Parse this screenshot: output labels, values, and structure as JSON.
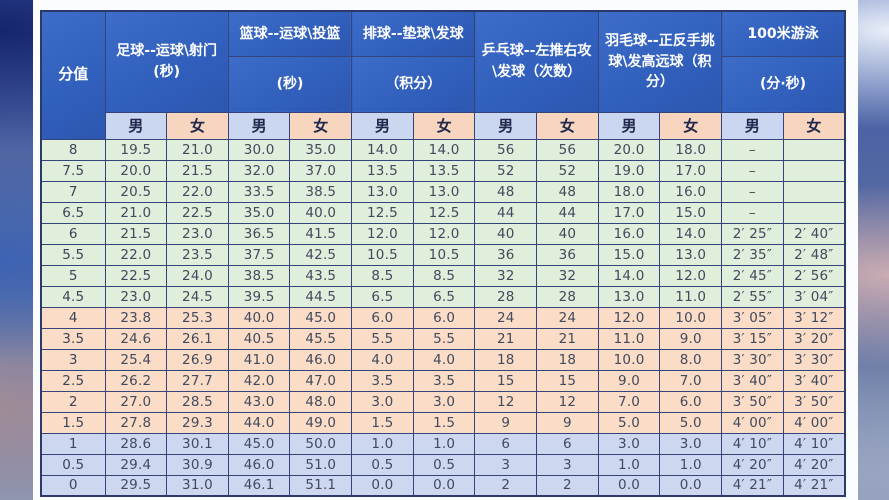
{
  "colors": {
    "header_blue": "#3160bd",
    "male_header_bg": "#cbd6f0",
    "female_header_bg": "#f8d5bf",
    "band_green": "#e0efdb",
    "band_peach": "#fbdcc6",
    "band_blue": "#cdd8f0",
    "grid_border": "#35457c",
    "card_bg": "#fbfcfe"
  },
  "table": {
    "score_header": "分值",
    "male_label": "男",
    "female_label": "女",
    "sports": [
      {
        "id": "football",
        "name": "足球--运球\\射门",
        "unit": "(秒)",
        "split": false
      },
      {
        "id": "basketball",
        "name": "篮球--运球\\投篮",
        "unit": "(秒)",
        "split": true
      },
      {
        "id": "volleyball",
        "name": "排球--垫球\\发球",
        "unit": "（积分）",
        "split": true
      },
      {
        "id": "tabletennis",
        "name": "乒乓球--左推右攻\\发球（次数）",
        "unit": "",
        "split": false
      },
      {
        "id": "badminton",
        "name": "羽毛球--正反手挑球\\发高远球（积分）",
        "unit": "",
        "split": false
      },
      {
        "id": "swimming",
        "name": "100米游泳",
        "unit": "(分·秒)",
        "split": true
      }
    ],
    "rows": [
      {
        "score": "8",
        "band": "green",
        "values": [
          "19.5",
          "21.0",
          "30.0",
          "35.0",
          "14.0",
          "14.0",
          "56",
          "56",
          "20.0",
          "18.0",
          "–",
          ""
        ]
      },
      {
        "score": "7.5",
        "band": "green",
        "values": [
          "20.0",
          "21.5",
          "32.0",
          "37.0",
          "13.5",
          "13.5",
          "52",
          "52",
          "19.0",
          "17.0",
          "–",
          ""
        ]
      },
      {
        "score": "7",
        "band": "green",
        "values": [
          "20.5",
          "22.0",
          "33.5",
          "38.5",
          "13.0",
          "13.0",
          "48",
          "48",
          "18.0",
          "16.0",
          "–",
          ""
        ]
      },
      {
        "score": "6.5",
        "band": "green",
        "values": [
          "21.0",
          "22.5",
          "35.0",
          "40.0",
          "12.5",
          "12.5",
          "44",
          "44",
          "17.0",
          "15.0",
          "–",
          ""
        ]
      },
      {
        "score": "6",
        "band": "green",
        "values": [
          "21.5",
          "23.0",
          "36.5",
          "41.5",
          "12.0",
          "12.0",
          "40",
          "40",
          "16.0",
          "14.0",
          "2′ 25″",
          "2′ 40″"
        ]
      },
      {
        "score": "5.5",
        "band": "green",
        "values": [
          "22.0",
          "23.5",
          "37.5",
          "42.5",
          "10.5",
          "10.5",
          "36",
          "36",
          "15.0",
          "13.0",
          "2′ 35″",
          "2′ 48″"
        ]
      },
      {
        "score": "5",
        "band": "green",
        "values": [
          "22.5",
          "24.0",
          "38.5",
          "43.5",
          "8.5",
          "8.5",
          "32",
          "32",
          "14.0",
          "12.0",
          "2′ 45″",
          "2′ 56″"
        ]
      },
      {
        "score": "4.5",
        "band": "green",
        "values": [
          "23.0",
          "24.5",
          "39.5",
          "44.5",
          "6.5",
          "6.5",
          "28",
          "28",
          "13.0",
          "11.0",
          "2′ 55″",
          "3′ 04″"
        ]
      },
      {
        "score": "4",
        "band": "peach",
        "values": [
          "23.8",
          "25.3",
          "40.0",
          "45.0",
          "6.0",
          "6.0",
          "24",
          "24",
          "12.0",
          "10.0",
          "3′ 05″",
          "3′ 12″"
        ]
      },
      {
        "score": "3.5",
        "band": "peach",
        "values": [
          "24.6",
          "26.1",
          "40.5",
          "45.5",
          "5.5",
          "5.5",
          "21",
          "21",
          "11.0",
          "9.0",
          "3′ 15″",
          "3′ 20″"
        ]
      },
      {
        "score": "3",
        "band": "peach",
        "values": [
          "25.4",
          "26.9",
          "41.0",
          "46.0",
          "4.0",
          "4.0",
          "18",
          "18",
          "10.0",
          "8.0",
          "3′ 30″",
          "3′ 30″"
        ]
      },
      {
        "score": "2.5",
        "band": "peach",
        "values": [
          "26.2",
          "27.7",
          "42.0",
          "47.0",
          "3.5",
          "3.5",
          "15",
          "15",
          "9.0",
          "7.0",
          "3′ 40″",
          "3′ 40″"
        ]
      },
      {
        "score": "2",
        "band": "peach",
        "values": [
          "27.0",
          "28.5",
          "43.0",
          "48.0",
          "3.0",
          "3.0",
          "12",
          "12",
          "7.0",
          "6.0",
          "3′ 50″",
          "3′ 50″"
        ]
      },
      {
        "score": "1.5",
        "band": "peach",
        "values": [
          "27.8",
          "29.3",
          "44.0",
          "49.0",
          "1.5",
          "1.5",
          "9",
          "9",
          "5.0",
          "5.0",
          "4′ 00″",
          "4′ 00″"
        ]
      },
      {
        "score": "1",
        "band": "blue",
        "values": [
          "28.6",
          "30.1",
          "45.0",
          "50.0",
          "1.0",
          "1.0",
          "6",
          "6",
          "3.0",
          "3.0",
          "4′ 10″",
          "4′ 10″"
        ]
      },
      {
        "score": "0.5",
        "band": "blue",
        "values": [
          "29.4",
          "30.9",
          "46.0",
          "51.0",
          "0.5",
          "0.5",
          "3",
          "3",
          "1.0",
          "1.0",
          "4′ 20″",
          "4′ 20″"
        ]
      },
      {
        "score": "0",
        "band": "blue",
        "values": [
          "29.5",
          "31.0",
          "46.1",
          "51.1",
          "0.0",
          "0.0",
          "2",
          "2",
          "0.0",
          "0.0",
          "4′ 21″",
          "4′ 21″"
        ]
      }
    ]
  }
}
